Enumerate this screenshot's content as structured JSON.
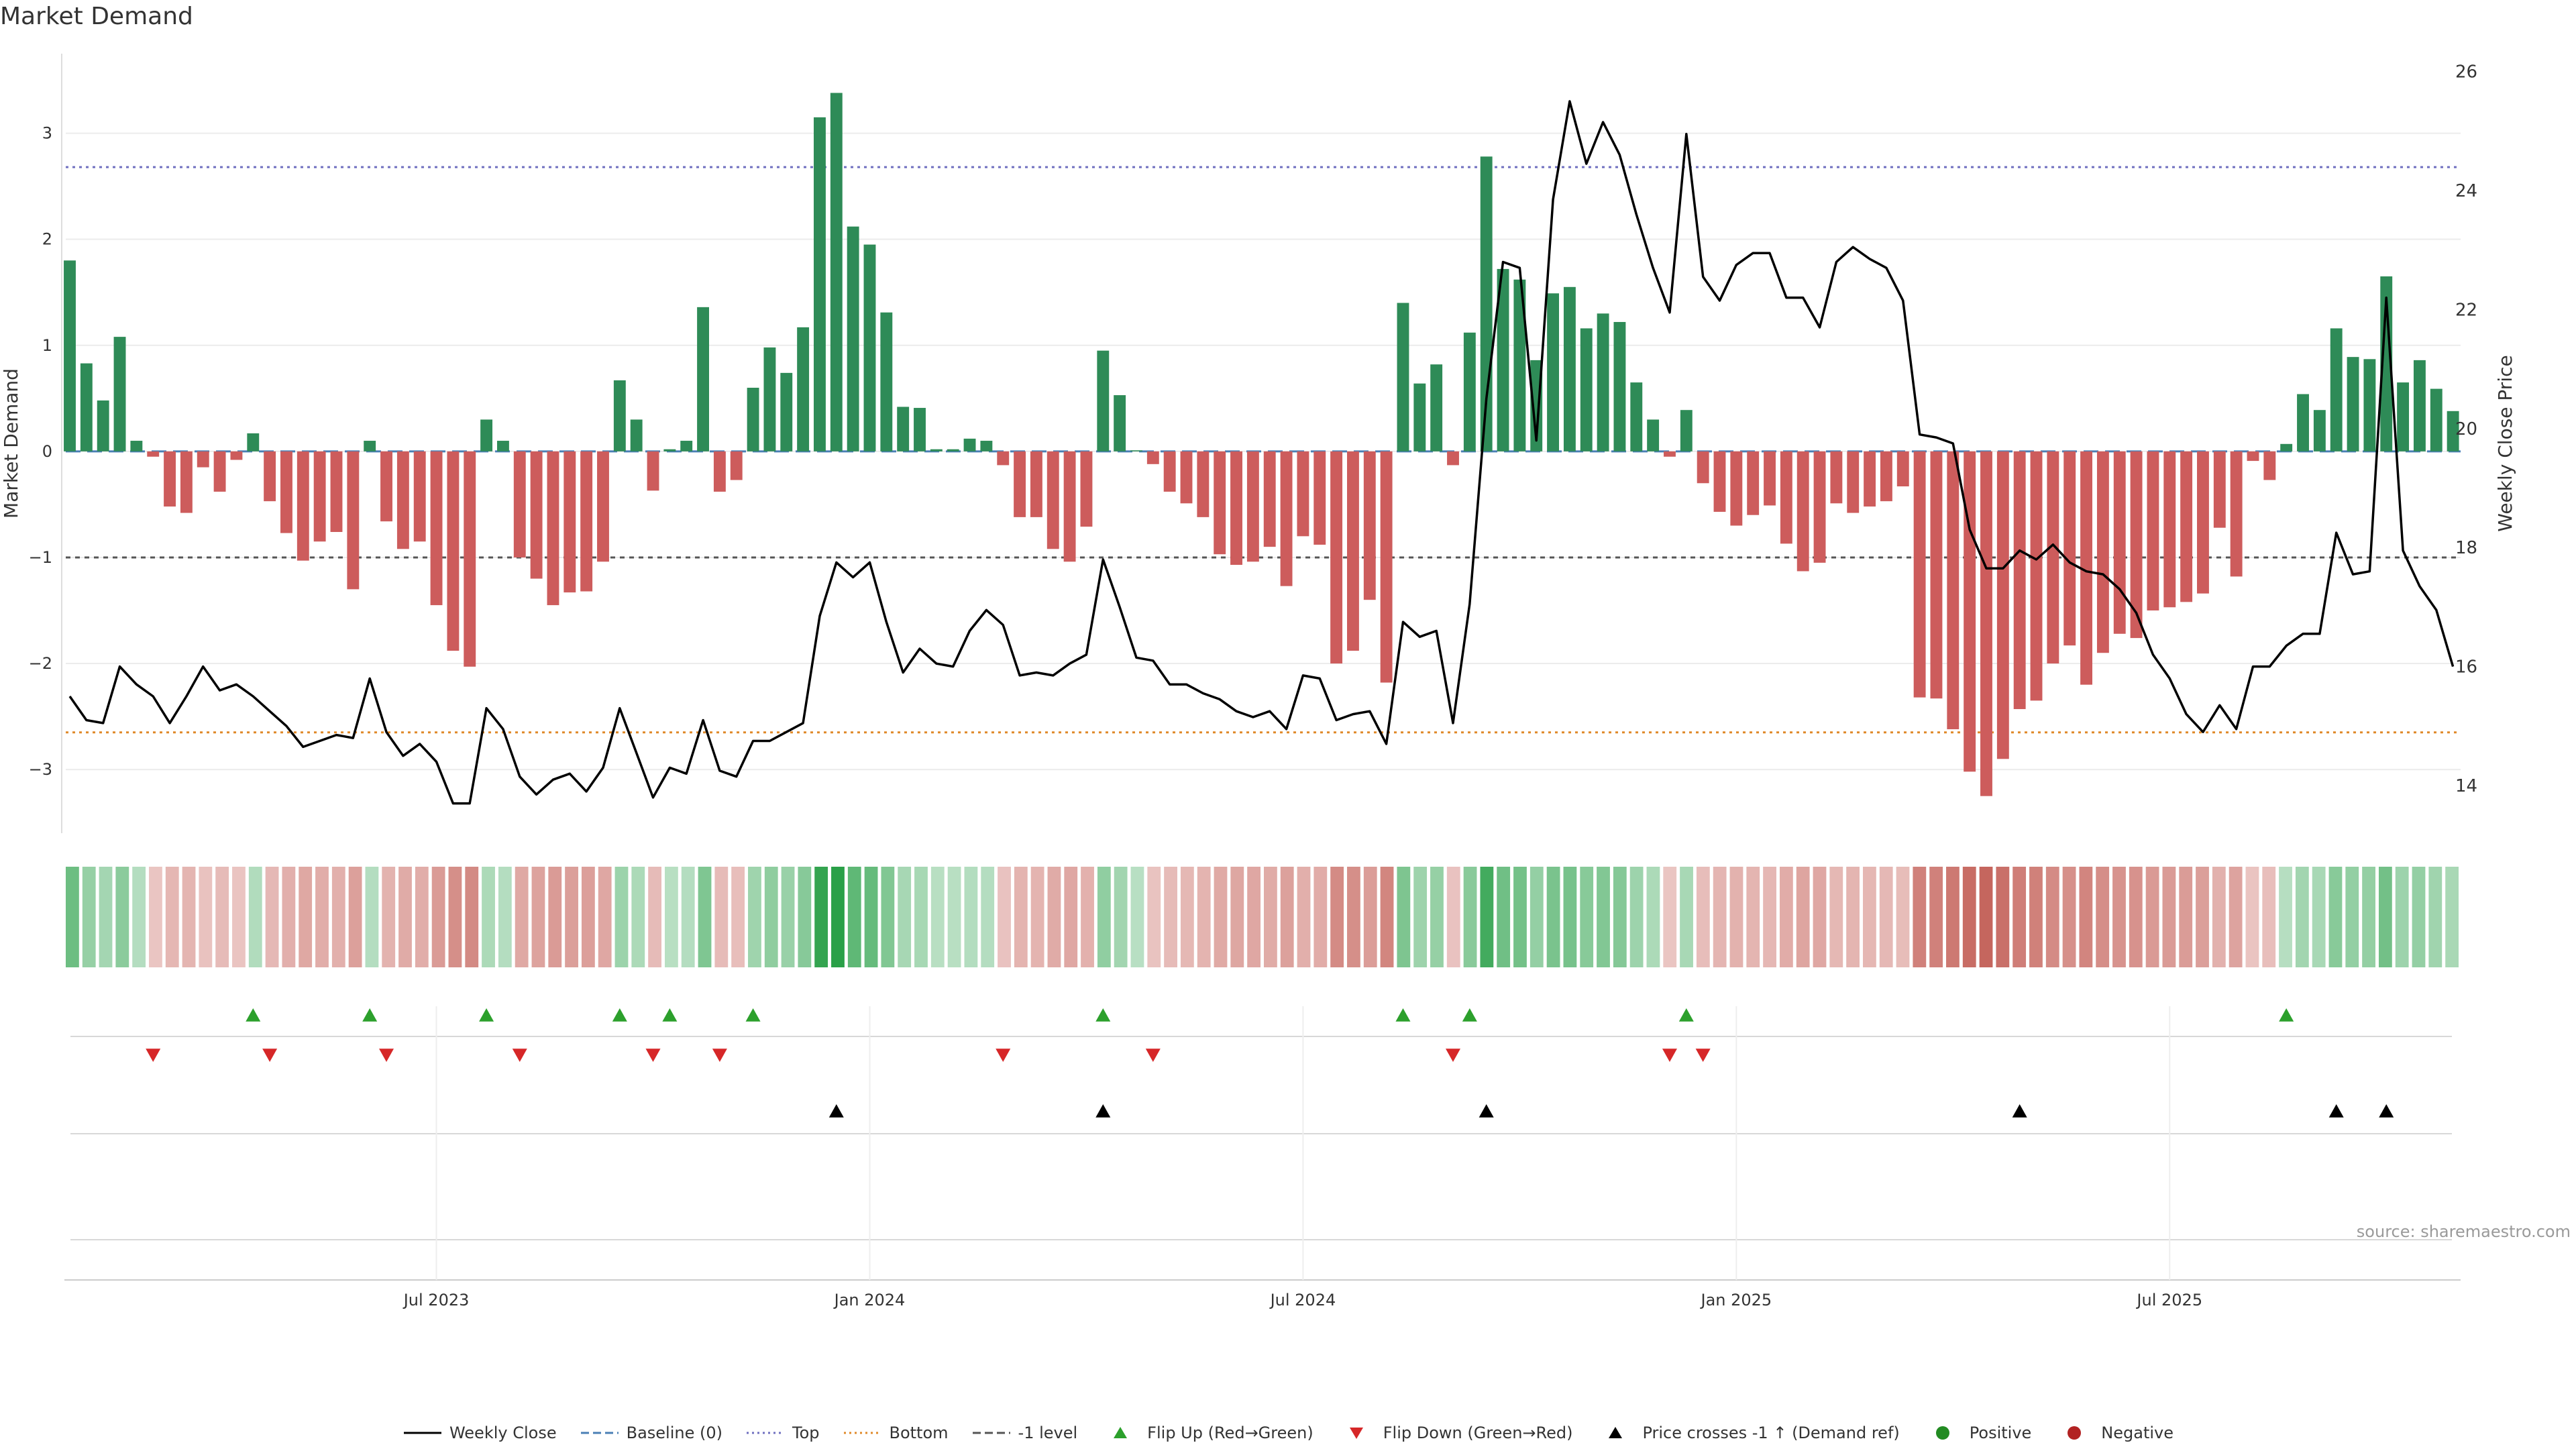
{
  "title": "Market Demand",
  "source": "source: sharemaestro.com",
  "colors": {
    "positive": "#2e8b57",
    "negative": "#cd5c5c",
    "line": "#000000",
    "top_line": "#7070c0",
    "bottom_line": "#e08a2a",
    "neg1_line": "#555555",
    "flip_up": "#2ca02c",
    "flip_down": "#d62728",
    "cross": "#000000"
  },
  "legend": [
    {
      "key": "weekly_close",
      "label": "Weekly Close",
      "icon": "solid-line"
    },
    {
      "key": "baseline",
      "label": "Baseline (0)",
      "icon": "dashed-line"
    },
    {
      "key": "top",
      "label": "Top",
      "icon": "dotted-line"
    },
    {
      "key": "bottom",
      "label": "Bottom",
      "icon": "dotted-line"
    },
    {
      "key": "neg1",
      "label": "-1 level",
      "icon": "dashed-line"
    },
    {
      "key": "flip_up",
      "label": "Flip Up (Red→Green)",
      "icon": "triangle-up"
    },
    {
      "key": "flip_down",
      "label": "Flip Down (Green→Red)",
      "icon": "triangle-down"
    },
    {
      "key": "cross",
      "label": "Price crosses -1 ↑ (Demand ref)",
      "icon": "triangle-up"
    },
    {
      "key": "positive",
      "label": "Positive",
      "icon": "dot"
    },
    {
      "key": "negative",
      "label": "Negative",
      "icon": "dot"
    }
  ],
  "chart_data": {
    "type": "bar",
    "title": "Market Demand",
    "ylabel": "Market Demand",
    "y2label": "Weekly Close Price",
    "ylim": [
      -3.6,
      3.75
    ],
    "y2lim": [
      13.2,
      26.3
    ],
    "yticks": [
      3,
      2,
      1,
      0,
      -1,
      -2,
      -3
    ],
    "y2ticks": [
      26,
      24,
      22,
      20,
      18,
      16,
      14
    ],
    "top_level": 2.68,
    "bottom_level": -2.65,
    "neg1_level": -1,
    "baseline": 0,
    "x_tick_labels": [
      {
        "label": "Jul 2023",
        "week": 22
      },
      {
        "label": "Jan 2024",
        "week": 48
      },
      {
        "label": "Jul 2024",
        "week": 74
      },
      {
        "label": "Jan 2025",
        "week": 100
      },
      {
        "label": "Jul 2025",
        "week": 126
      }
    ],
    "demand": [
      1.8,
      0.83,
      0.48,
      1.08,
      0.1,
      -0.05,
      -0.52,
      -0.58,
      -0.15,
      -0.38,
      -0.08,
      0.17,
      -0.47,
      -0.77,
      -1.03,
      -0.85,
      -0.76,
      -1.3,
      0.1,
      -0.66,
      -0.92,
      -0.85,
      -1.45,
      -1.88,
      -2.03,
      0.3,
      0.1,
      -1.0,
      -1.2,
      -1.45,
      -1.33,
      -1.32,
      -1.04,
      0.67,
      0.3,
      -0.37,
      0.02,
      0.1,
      1.36,
      -0.38,
      -0.27,
      0.6,
      0.98,
      0.74,
      1.17,
      3.15,
      3.38,
      2.12,
      1.95,
      1.31,
      0.42,
      0.41,
      0.02,
      0.02,
      0.12,
      0.1,
      -0.13,
      -0.62,
      -0.62,
      -0.92,
      -1.04,
      -0.71,
      0.95,
      0.53,
      0.01,
      -0.12,
      -0.38,
      -0.49,
      -0.62,
      -0.97,
      -1.07,
      -1.04,
      -0.9,
      -1.27,
      -0.8,
      -0.88,
      -2.0,
      -1.88,
      -1.4,
      -2.18,
      1.4,
      0.64,
      0.82,
      -0.13,
      1.12,
      2.78,
      1.72,
      1.62,
      0.86,
      1.49,
      1.55,
      1.16,
      1.3,
      1.22,
      0.65,
      0.3,
      -0.05,
      0.39,
      -0.3,
      -0.57,
      -0.7,
      -0.6,
      -0.51,
      -0.87,
      -1.13,
      -1.05,
      -0.49,
      -0.58,
      -0.52,
      -0.47,
      -0.33,
      -2.32,
      -2.33,
      -2.62,
      -3.02,
      -3.25,
      -2.9,
      -2.43,
      -2.35,
      -2.0,
      -1.83,
      -2.2,
      -1.9,
      -1.72,
      -1.76,
      -1.5,
      -1.47,
      -1.42,
      -1.34,
      -0.72,
      -1.18,
      -0.09,
      -0.27,
      0.07,
      0.54,
      0.39,
      1.16,
      0.89,
      0.87,
      1.65,
      0.65,
      0.86,
      0.59,
      0.38
    ],
    "price": [
      15.5,
      15.1,
      15.05,
      16,
      15.7,
      15.5,
      15.05,
      15.5,
      16,
      15.6,
      15.7,
      15.5,
      15.25,
      15,
      14.65,
      14.75,
      14.85,
      14.8,
      15.8,
      14.9,
      14.5,
      14.7,
      14.4,
      13.7,
      13.7,
      15.3,
      14.95,
      14.15,
      13.85,
      14.1,
      14.2,
      13.9,
      14.3,
      15.3,
      14.55,
      13.8,
      14.3,
      14.2,
      15.1,
      14.25,
      14.15,
      14.75,
      14.75,
      14.9,
      15.05,
      16.85,
      17.75,
      17.5,
      17.75,
      16.75,
      15.9,
      16.3,
      16.05,
      16,
      16.6,
      16.95,
      16.7,
      15.85,
      15.9,
      15.85,
      16.05,
      16.2,
      17.8,
      17,
      16.15,
      16.1,
      15.7,
      15.7,
      15.55,
      15.45,
      15.25,
      15.15,
      15.25,
      14.95,
      15.85,
      15.8,
      15.1,
      15.2,
      15.25,
      14.7,
      16.75,
      16.5,
      16.6,
      15.05,
      17.05,
      20.5,
      22.8,
      22.7,
      19.8,
      23.85,
      25.5,
      24.45,
      25.15,
      24.6,
      23.6,
      22.7,
      21.95,
      24.95,
      22.55,
      22.15,
      22.75,
      22.95,
      22.95,
      22.2,
      22.2,
      21.7,
      22.8,
      23.05,
      22.85,
      22.7,
      22.15,
      19.9,
      19.85,
      19.75,
      18.3,
      17.65,
      17.65,
      17.95,
      17.8,
      18.05,
      17.75,
      17.6,
      17.55,
      17.3,
      16.9,
      16.2,
      15.8,
      15.2,
      14.9,
      15.35,
      14.95,
      16,
      16,
      16.35,
      16.55,
      16.55,
      18.25,
      17.55,
      17.6,
      22.2,
      17.95,
      17.35,
      16.95,
      16
    ]
  },
  "flip_up_weeks": [
    11,
    18,
    25,
    33,
    36,
    41,
    62,
    80,
    84,
    97,
    133
  ],
  "flip_down_weeks": [
    5,
    12,
    19,
    27,
    35,
    39,
    56,
    65,
    83,
    96,
    98
  ],
  "cross_weeks": [
    46,
    62,
    85,
    117,
    136,
    139
  ]
}
